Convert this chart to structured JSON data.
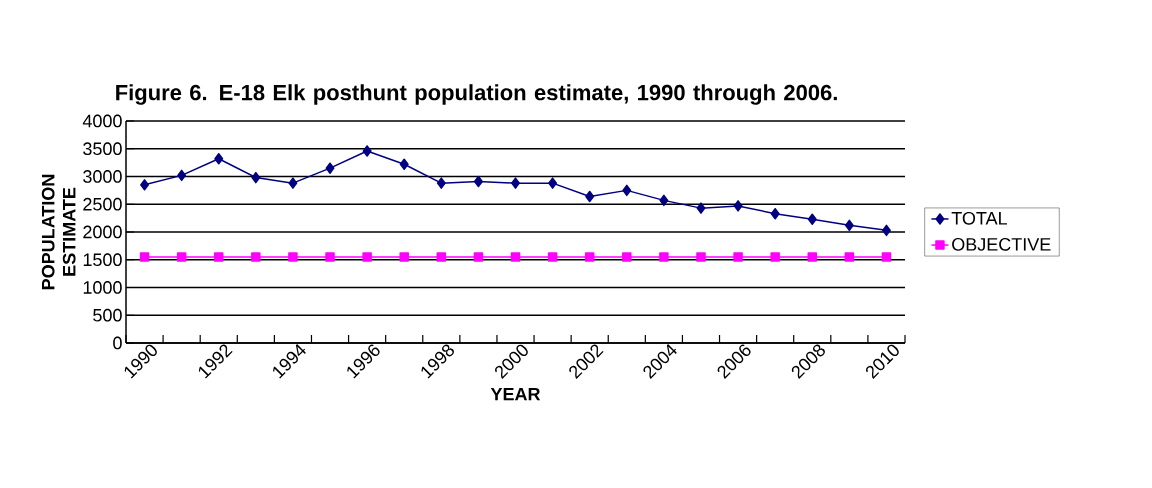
{
  "chart_data": {
    "type": "line",
    "title": "Figure 6. E-18 Elk posthunt population estimate, 1990 through 2006.",
    "xlabel": "YEAR",
    "ylabel": "POPULATION ESTIMATE",
    "categories": [
      "1990",
      null,
      "1992",
      null,
      "1994",
      null,
      "1996",
      null,
      "1998",
      null,
      "2000",
      null,
      "2002",
      null,
      "2004",
      null,
      "2006",
      null,
      "2008",
      null,
      "2010"
    ],
    "series": [
      {
        "name": "TOTAL",
        "color": "#000080",
        "marker": "diamond",
        "values": [
          2850,
          3020,
          3320,
          2980,
          2880,
          3150,
          3460,
          3220,
          2880,
          2910,
          2880,
          2880,
          2640,
          2750,
          2570,
          2430,
          2470,
          2330,
          2230,
          2120,
          2030
        ]
      },
      {
        "name": "OBJECTIVE",
        "color": "#ff00ff",
        "marker": "square",
        "values": [
          1550,
          1550,
          1550,
          1550,
          1550,
          1550,
          1550,
          1550,
          1550,
          1550,
          1550,
          1550,
          1550,
          1550,
          1550,
          1550,
          1550,
          1550,
          1550,
          1550,
          1550
        ]
      }
    ],
    "ylim": [
      0,
      4000
    ],
    "yticks": [
      0,
      500,
      1000,
      1500,
      2000,
      2500,
      3000,
      3500,
      4000
    ],
    "grid": "y",
    "legend": "right"
  }
}
